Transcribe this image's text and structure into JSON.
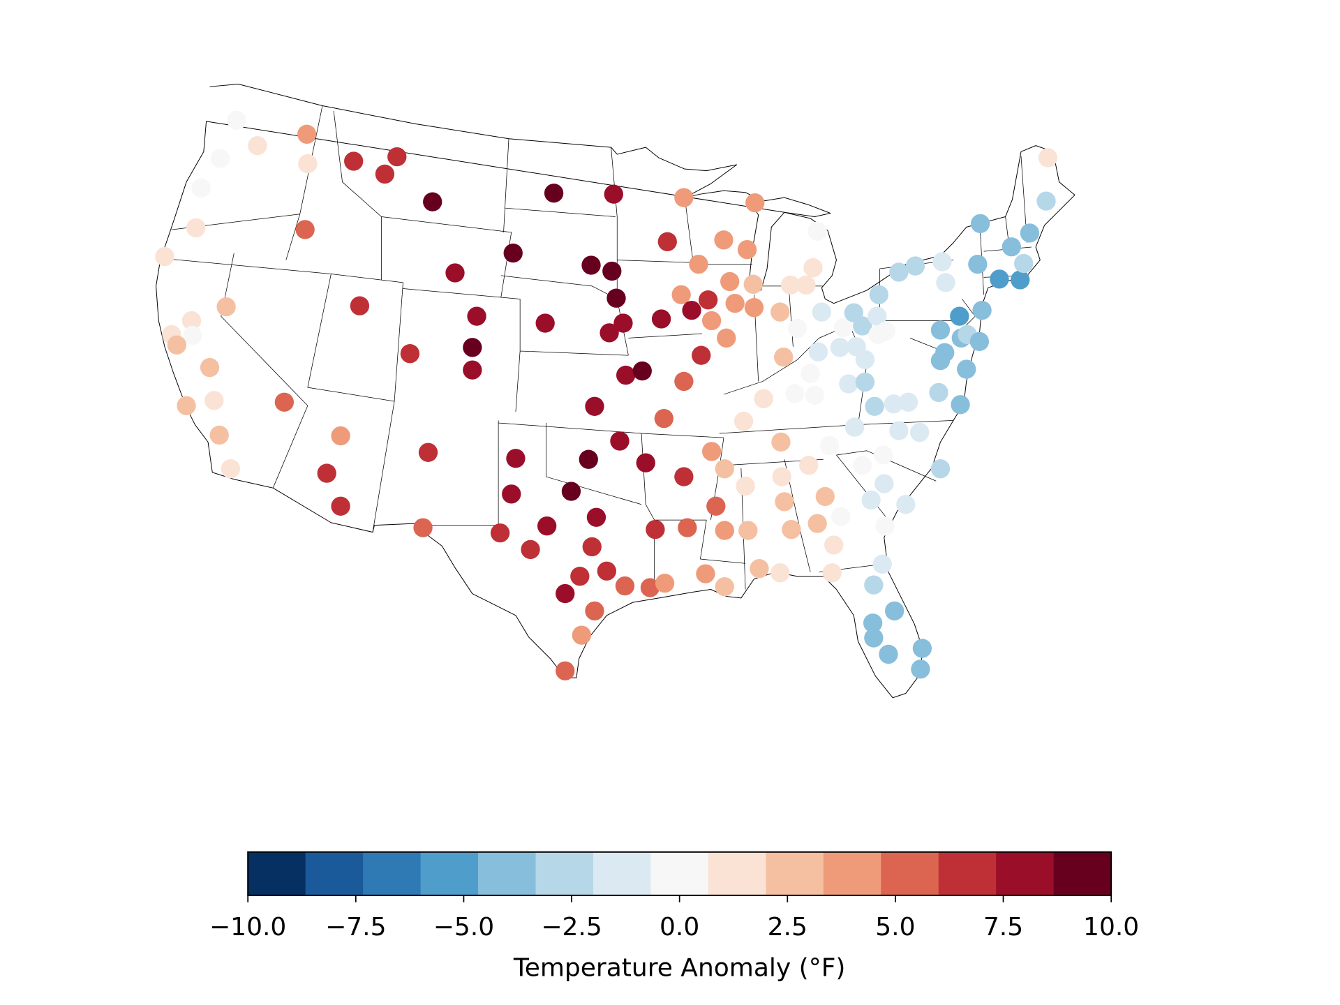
{
  "chart_data": {
    "type": "scatter",
    "x": [
      -117.35,
      -116.15,
      -113.3,
      -113.25,
      -118.3,
      -119.4,
      -119.7,
      -121.5,
      -113.4,
      -117.95,
      -119.95,
      -121.1,
      -119.9,
      -120.8,
      -118.9,
      -118.65,
      -120.25,
      -118.35,
      -117.7,
      -114.6,
      -111.35,
      -112.15,
      -111.35,
      -106.3,
      -106.6,
      -110.6,
      -108.1,
      -108.8,
      -106.05,
      -99.05,
      -95.6,
      -101.4,
      -96.9,
      -95.7,
      -104.75,
      -110.25,
      -103.5,
      -99.55,
      -95.45,
      -95.05,
      -95.85,
      -103.75,
      -107.35,
      -103.75,
      -94.9,
      -93.95,
      -96.7,
      -92.7,
      -91.55,
      -90.55,
      -95.25,
      -97.05,
      -93.75,
      -101.25,
      -98.05,
      -101.5,
      -96.6,
      -99.45,
      -102.15,
      -100.4,
      -96.85,
      -97.55,
      -96,
      -98.4,
      -94.95,
      -93.5,
      -92.65,
      -96.7,
      -97.45,
      -98.4,
      -93.2,
      -91.35,
      -91.55,
      -91.55,
      -92.5,
      -87.45,
      -89.25,
      -87.9,
      -90.7,
      -88.9,
      -87.55,
      -91.7,
      -91.1,
      -90.15,
      -92.85,
      -88.6,
      -87.5,
      -89.95,
      -89.1,
      -86,
      -85.4,
      -84.5,
      -84.1,
      -83.85,
      -83.6,
      -85,
      -85.8,
      -86.95,
      -88.1,
      -89.95,
      -89.2,
      -89.7,
      -90.3,
      -89.2,
      -87.85,
      -88,
      -85.95,
      -85.9,
      -85.75,
      -85.35,
      -84.35,
      -83.4,
      -83.85,
      -89.2,
      -87.2,
      -86,
      -82.9,
      -83,
      -82.5,
      -83.15,
      -84.25,
      -85.15,
      -84,
      -83.8,
      -82.55,
      -81.6,
      -81.1,
      -82.05,
      -81.1,
      -82.35,
      -81.75,
      -81.25,
      -80.4,
      -80.35,
      -79.9,
      -80.3,
      -79.15,
      -78.2,
      -76.65,
      -76.45,
      -74.45,
      -74.6,
      -73.35,
      -72.15,
      -72.65,
      -71.6,
      -71.95,
      -70.65,
      -70.55,
      -74.35,
      -75.65,
      -76.75,
      -75.55,
      -75.2,
      -74.5,
      -76.5,
      -76.75,
      -75.25,
      -76.85,
      -75.6,
      -78.6,
      -79.45,
      -80.55,
      -81.7,
      -79.15,
      -77.95,
      -80.05,
      -81.25,
      -76.75,
      -80,
      -80.75,
      -78.75,
      -79.95,
      -80.1,
      -80.6,
      -80.65,
      -79.4,
      -80.6,
      -79.75,
      -77.8,
      -77.9
    ],
    "y": [
      47.14,
      46.12,
      46.58,
      45.39,
      45.6,
      44.41,
      42.8,
      41.64,
      42.73,
      39.61,
      39.05,
      38.49,
      38.46,
      38.07,
      37.16,
      35.83,
      35.62,
      34.43,
      33.07,
      35.76,
      34.4,
      32.89,
      31.56,
      33.73,
      30.69,
      45.49,
      45.67,
      44.97,
      43.85,
      44.2,
      44.16,
      41.78,
      41.29,
      41.05,
      40.98,
      39.65,
      39.23,
      38.95,
      39.96,
      38.95,
      38.56,
      37.97,
      37.72,
      37.06,
      36.85,
      37.02,
      35.59,
      35.1,
      36.6,
      37.65,
      34.19,
      33.45,
      33.31,
      33.49,
      32.16,
      32.05,
      31.11,
      30.76,
      30.48,
      29.81,
      29.92,
      28.73,
      28.94,
      28.03,
      28.34,
      28.27,
      28.45,
      27.33,
      26.35,
      24.91,
      30.62,
      30.69,
      32.75,
      44.02,
      42.24,
      43.81,
      42.31,
      41.92,
      41.33,
      40.63,
      40.52,
      40.1,
      39.47,
      39.89,
      39.12,
      39.75,
      39.58,
      39.05,
      38.35,
      39.4,
      40.49,
      40.49,
      41.19,
      42.66,
      39.4,
      38.74,
      37.58,
      35.9,
      34.99,
      33.77,
      33.07,
      31.56,
      28.83,
      30.58,
      30.58,
      32.37,
      34.15,
      32.75,
      31.74,
      30.62,
      33.21,
      31.95,
      30.86,
      28.31,
      29.04,
      28.87,
      29.99,
      28.87,
      31.14,
      34.01,
      36.92,
      36.11,
      36.04,
      37.79,
      37.97,
      38,
      37.48,
      36.5,
      36.57,
      38.77,
      39.37,
      38.84,
      39.23,
      38.49,
      38.63,
      40.1,
      41.01,
      41.26,
      41.43,
      40.59,
      42.97,
      41.33,
      40.73,
      40.7,
      42.03,
      42.59,
      41.36,
      43.88,
      45.63,
      39.47,
      39.23,
      38.67,
      38.35,
      38.49,
      38.21,
      37.76,
      37.44,
      37.09,
      36.15,
      35.66,
      35.76,
      35.69,
      35.59,
      34.75,
      34.61,
      34.54,
      33.63,
      33.21,
      33.07,
      32.47,
      31.81,
      31.63,
      30.76,
      29.22,
      28.38,
      26.84,
      27.33,
      26.24,
      25.58,
      25.82,
      24.98
    ],
    "values": [
      0,
      1.3,
      4,
      1.3,
      0,
      0,
      1.3,
      1.3,
      5.3,
      2.7,
      1.3,
      1.3,
      0,
      2.7,
      2.7,
      1.3,
      2.7,
      2.7,
      1.3,
      5.3,
      4,
      6.7,
      6.7,
      6.7,
      5.3,
      6.7,
      6.7,
      6.7,
      9.3,
      9.3,
      8,
      9.3,
      9.3,
      9.3,
      8,
      6.7,
      8,
      8,
      9.3,
      8,
      8,
      9.3,
      6.7,
      8,
      8,
      9.3,
      8,
      5.3,
      5.3,
      6.7,
      8,
      9.3,
      8,
      8,
      9.3,
      8,
      8,
      8,
      6.7,
      6.7,
      6.7,
      6.7,
      6.7,
      8,
      5.3,
      5.3,
      4,
      5.3,
      4,
      5.3,
      6.7,
      5.3,
      6.7,
      4,
      6.7,
      4,
      4,
      4,
      4,
      4,
      2.7,
      4,
      8,
      6.7,
      8,
      4,
      4,
      4,
      4,
      2.7,
      1.3,
      1.3,
      1.3,
      0,
      -1.3,
      0,
      2.7,
      1.3,
      1.3,
      4,
      2.7,
      5.3,
      4,
      4,
      2.7,
      1.3,
      2.7,
      1.3,
      2.7,
      2.7,
      1.3,
      2.7,
      2.7,
      2.7,
      2.7,
      1.3,
      1.3,
      1.3,
      0,
      0,
      0,
      0,
      0,
      -1.3,
      -1.3,
      -1.3,
      -1.3,
      -1.3,
      -2.7,
      0,
      -2.7,
      -2.7,
      -1.3,
      0,
      0,
      -2.7,
      -2.7,
      -2.7,
      -1.3,
      -1.3,
      -4,
      -4,
      -5.3,
      -5.3,
      -4,
      -4,
      -2.7,
      -2.7,
      1.3,
      -4,
      -5.3,
      -4,
      -4,
      -2.7,
      -4,
      -4,
      -4,
      -4,
      -2.7,
      -4,
      -1.3,
      -1.3,
      -2.7,
      -1.3,
      -1.3,
      -1.3,
      0,
      0,
      -2.7,
      -1.3,
      -1.3,
      -1.3,
      0,
      -1.3,
      -2.7,
      -4,
      -4,
      -4,
      -4,
      -4,
      -4
    ],
    "colorbar": {
      "label": "Temperature Anomaly (°F)",
      "lim": [
        -10,
        10
      ],
      "ticks": [
        {
          "value": -10,
          "label": "−10.0"
        },
        {
          "value": -7.5,
          "label": "−7.5"
        },
        {
          "value": -5,
          "label": "−5.0"
        },
        {
          "value": -2.5,
          "label": "−2.5"
        },
        {
          "value": 0,
          "label": "0.0"
        },
        {
          "value": 2.5,
          "label": "2.5"
        },
        {
          "value": 5,
          "label": "5.0"
        },
        {
          "value": 7.5,
          "label": "7.5"
        },
        {
          "value": 10,
          "label": "10.0"
        }
      ],
      "colors": [
        "#053061",
        "#1b5a9a",
        "#2f79b5",
        "#4f9dcb",
        "#87bedc",
        "#b6d7e8",
        "#dbe9f2",
        "#f7f7f7",
        "#fae2d5",
        "#f5c0a2",
        "#ef9b7a",
        "#db6551",
        "#be3036",
        "#9b0e29",
        "#67001f"
      ]
    }
  }
}
